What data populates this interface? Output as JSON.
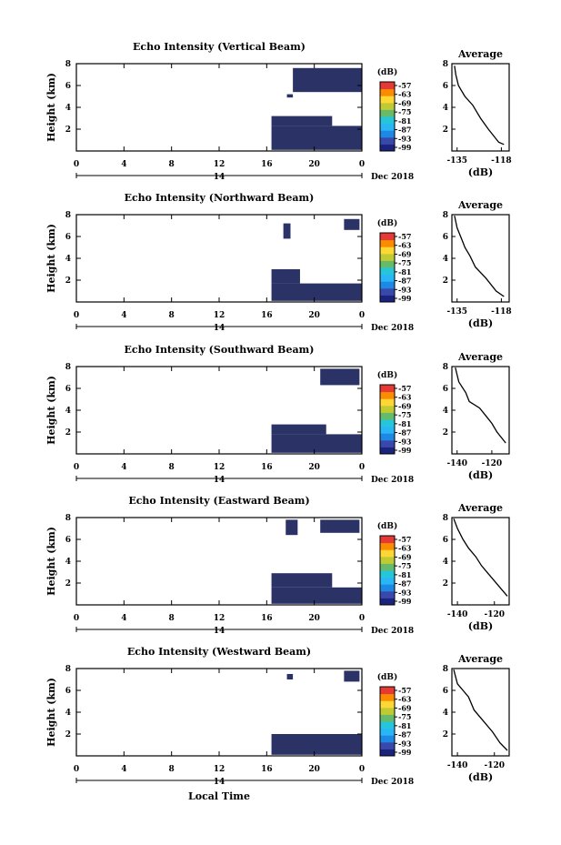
{
  "figure": {
    "date_label": "Dec 2018",
    "xlabel": "Local Time",
    "cbar_unit": "(dB)",
    "avg_title": "Average",
    "avg_xlabel": "(dB)",
    "colormap": [
      "#1a237e",
      "#3949ab",
      "#1e88e5",
      "#29b6f6",
      "#26c6da",
      "#66bb6a",
      "#c0ca33",
      "#fdd835",
      "#fb8c00",
      "#e53935"
    ],
    "echo_color": "#2b3266"
  },
  "chart_data": [
    {
      "type": "heatmap",
      "title": "Echo Intensity (Vertical Beam)",
      "ylabel": "Height (km)",
      "x_ticks": [
        "0",
        "4",
        "8",
        "12",
        "16",
        "20",
        "0"
      ],
      "x_range": [
        0,
        24
      ],
      "day_label": "14",
      "y_ticks": [
        "2",
        "4",
        "6",
        "8"
      ],
      "y_range": [
        0,
        8
      ],
      "colorbar_ticks": [
        "-57",
        "-63",
        "-69",
        "-75",
        "-81",
        "-87",
        "-93",
        "-99"
      ],
      "echo_cells": [
        {
          "x": [
            16.4,
            24
          ],
          "y": [
            0.1,
            2.3
          ]
        },
        {
          "x": [
            16.4,
            21.5
          ],
          "y": [
            2.3,
            3.2
          ]
        },
        {
          "x": [
            18.2,
            24
          ],
          "y": [
            5.4,
            7.6
          ]
        },
        {
          "x": [
            17.7,
            18.2
          ],
          "y": [
            4.9,
            5.2
          ]
        }
      ],
      "average_profile": {
        "x_ticks": [
          "-135",
          "-118"
        ],
        "x_range": [
          -137,
          -115
        ],
        "y_ticks": [
          "2",
          "4",
          "6",
          "8"
        ],
        "points": [
          [
            -136,
            7.8
          ],
          [
            -135.5,
            7.0
          ],
          [
            -134.5,
            6.0
          ],
          [
            -132,
            5.0
          ],
          [
            -129,
            4.2
          ],
          [
            -126,
            3.0
          ],
          [
            -123,
            2.0
          ],
          [
            -119,
            0.8
          ],
          [
            -117,
            0.6
          ]
        ]
      }
    },
    {
      "type": "heatmap",
      "title": "Echo Intensity (Northward Beam)",
      "ylabel": "Height (km)",
      "x_ticks": [
        "0",
        "4",
        "8",
        "12",
        "16",
        "20",
        "0"
      ],
      "x_range": [
        0,
        24
      ],
      "day_label": "14",
      "y_ticks": [
        "2",
        "4",
        "6",
        "8"
      ],
      "y_range": [
        0,
        8
      ],
      "colorbar_ticks": [
        "-57",
        "-63",
        "-69",
        "-75",
        "-81",
        "-87",
        "-93",
        "-99"
      ],
      "echo_cells": [
        {
          "x": [
            16.4,
            24
          ],
          "y": [
            0.1,
            1.7
          ]
        },
        {
          "x": [
            16.4,
            18.8
          ],
          "y": [
            1.7,
            3.0
          ]
        },
        {
          "x": [
            17.4,
            18.0
          ],
          "y": [
            5.8,
            7.2
          ]
        },
        {
          "x": [
            22.5,
            23.8
          ],
          "y": [
            6.6,
            7.6
          ]
        }
      ],
      "average_profile": {
        "x_ticks": [
          "-135",
          "-118"
        ],
        "x_range": [
          -137,
          -115
        ],
        "y_ticks": [
          "2",
          "4",
          "6",
          "8"
        ],
        "points": [
          [
            -136,
            7.9
          ],
          [
            -135,
            6.8
          ],
          [
            -133,
            5.6
          ],
          [
            -132,
            5.0
          ],
          [
            -130,
            4.2
          ],
          [
            -128,
            3.2
          ],
          [
            -124,
            2.2
          ],
          [
            -120,
            1.0
          ],
          [
            -117,
            0.5
          ]
        ]
      }
    },
    {
      "type": "heatmap",
      "title": "Echo Intensity (Southward Beam)",
      "ylabel": "Height (km)",
      "x_ticks": [
        "0",
        "4",
        "8",
        "12",
        "16",
        "20",
        "0"
      ],
      "x_range": [
        0,
        24
      ],
      "day_label": "14",
      "y_ticks": [
        "2",
        "4",
        "6",
        "8"
      ],
      "y_range": [
        0,
        8
      ],
      "colorbar_ticks": [
        "-57",
        "-63",
        "-69",
        "-75",
        "-81",
        "-87",
        "-93",
        "-99"
      ],
      "echo_cells": [
        {
          "x": [
            16.4,
            24
          ],
          "y": [
            0.1,
            1.8
          ]
        },
        {
          "x": [
            16.4,
            21.0
          ],
          "y": [
            1.8,
            2.7
          ]
        },
        {
          "x": [
            20.5,
            23.8
          ],
          "y": [
            6.3,
            7.8
          ]
        }
      ],
      "average_profile": {
        "x_ticks": [
          "-140",
          "-120"
        ],
        "x_range": [
          -143,
          -110
        ],
        "y_ticks": [
          "2",
          "4",
          "6",
          "8"
        ],
        "points": [
          [
            -141,
            7.9
          ],
          [
            -139,
            6.6
          ],
          [
            -135,
            5.6
          ],
          [
            -133,
            4.8
          ],
          [
            -127,
            4.2
          ],
          [
            -123,
            3.4
          ],
          [
            -120,
            2.8
          ],
          [
            -117,
            2.0
          ],
          [
            -112,
            1.0
          ]
        ]
      }
    },
    {
      "type": "heatmap",
      "title": "Echo Intensity (Eastward Beam)",
      "ylabel": "Height (km)",
      "x_ticks": [
        "0",
        "4",
        "8",
        "12",
        "16",
        "20",
        "0"
      ],
      "x_range": [
        0,
        24
      ],
      "day_label": "14",
      "y_ticks": [
        "2",
        "4",
        "6",
        "8"
      ],
      "y_range": [
        0,
        8
      ],
      "colorbar_ticks": [
        "-57",
        "-63",
        "-69",
        "-75",
        "-81",
        "-87",
        "-93",
        "-99"
      ],
      "echo_cells": [
        {
          "x": [
            16.4,
            24
          ],
          "y": [
            0.1,
            1.6
          ]
        },
        {
          "x": [
            16.4,
            21.5
          ],
          "y": [
            1.6,
            2.9
          ]
        },
        {
          "x": [
            17.6,
            18.6
          ],
          "y": [
            6.4,
            7.8
          ]
        },
        {
          "x": [
            20.5,
            23.8
          ],
          "y": [
            6.6,
            7.8
          ]
        }
      ],
      "average_profile": {
        "x_ticks": [
          "-140",
          "-120"
        ],
        "x_range": [
          -143,
          -112
        ],
        "y_ticks": [
          "2",
          "4",
          "6",
          "8"
        ],
        "points": [
          [
            -142,
            7.9
          ],
          [
            -140,
            7.0
          ],
          [
            -137,
            6.0
          ],
          [
            -134,
            5.2
          ],
          [
            -130,
            4.4
          ],
          [
            -127,
            3.6
          ],
          [
            -123,
            2.8
          ],
          [
            -118,
            1.8
          ],
          [
            -113,
            0.8
          ]
        ]
      }
    },
    {
      "type": "heatmap",
      "title": "Echo Intensity (Westward Beam)",
      "ylabel": "Height (km)",
      "x_ticks": [
        "0",
        "4",
        "8",
        "12",
        "16",
        "20",
        "0"
      ],
      "x_range": [
        0,
        24
      ],
      "day_label": "14",
      "y_ticks": [
        "2",
        "4",
        "6",
        "8"
      ],
      "y_range": [
        0,
        8
      ],
      "colorbar_ticks": [
        "-57",
        "-63",
        "-69",
        "-75",
        "-81",
        "-87",
        "-93",
        "-99"
      ],
      "echo_cells": [
        {
          "x": [
            16.4,
            24
          ],
          "y": [
            0.1,
            2.0
          ]
        },
        {
          "x": [
            22.5,
            23.8
          ],
          "y": [
            6.8,
            7.8
          ]
        },
        {
          "x": [
            17.7,
            18.2
          ],
          "y": [
            7.0,
            7.5
          ]
        }
      ],
      "average_profile": {
        "x_ticks": [
          "-140",
          "-120"
        ],
        "x_range": [
          -143,
          -112
        ],
        "y_ticks": [
          "2",
          "4",
          "6",
          "8"
        ],
        "points": [
          [
            -142,
            7.9
          ],
          [
            -140,
            6.6
          ],
          [
            -137,
            6.0
          ],
          [
            -134,
            5.4
          ],
          [
            -131,
            4.2
          ],
          [
            -126,
            3.2
          ],
          [
            -121,
            2.2
          ],
          [
            -117,
            1.2
          ],
          [
            -113,
            0.5
          ]
        ]
      }
    }
  ]
}
